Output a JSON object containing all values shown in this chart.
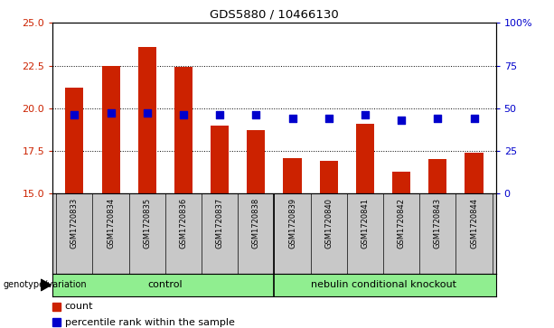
{
  "title": "GDS5880 / 10466130",
  "samples": [
    "GSM1720833",
    "GSM1720834",
    "GSM1720835",
    "GSM1720836",
    "GSM1720837",
    "GSM1720838",
    "GSM1720839",
    "GSM1720840",
    "GSM1720841",
    "GSM1720842",
    "GSM1720843",
    "GSM1720844"
  ],
  "count_values": [
    21.2,
    22.5,
    23.6,
    22.4,
    19.0,
    18.7,
    17.1,
    16.9,
    19.1,
    16.3,
    17.0,
    17.4
  ],
  "percentile_values": [
    46,
    47,
    47,
    46,
    46,
    46,
    44,
    44,
    46,
    43,
    44,
    44
  ],
  "ylim_left": [
    15,
    25
  ],
  "ylim_right": [
    0,
    100
  ],
  "yticks_left": [
    15,
    17.5,
    20,
    22.5,
    25
  ],
  "yticks_right": [
    0,
    25,
    50,
    75,
    100
  ],
  "bar_color": "#cc2200",
  "dot_color": "#0000cc",
  "bar_width": 0.5,
  "dot_size": 30,
  "group_label_1": "control",
  "group_label_2": "nebulin conditional knockout",
  "group_color": "#90ee90",
  "group_divider_idx": 5.5,
  "group_row_label": "genotype/variation",
  "legend_count_label": "count",
  "legend_percentile_label": "percentile rank within the sample",
  "grid_color": "#000000",
  "tick_label_color_left": "#cc2200",
  "tick_label_color_right": "#0000cc",
  "label_area_bg": "#c8c8c8",
  "col_divider_color": "#888888"
}
